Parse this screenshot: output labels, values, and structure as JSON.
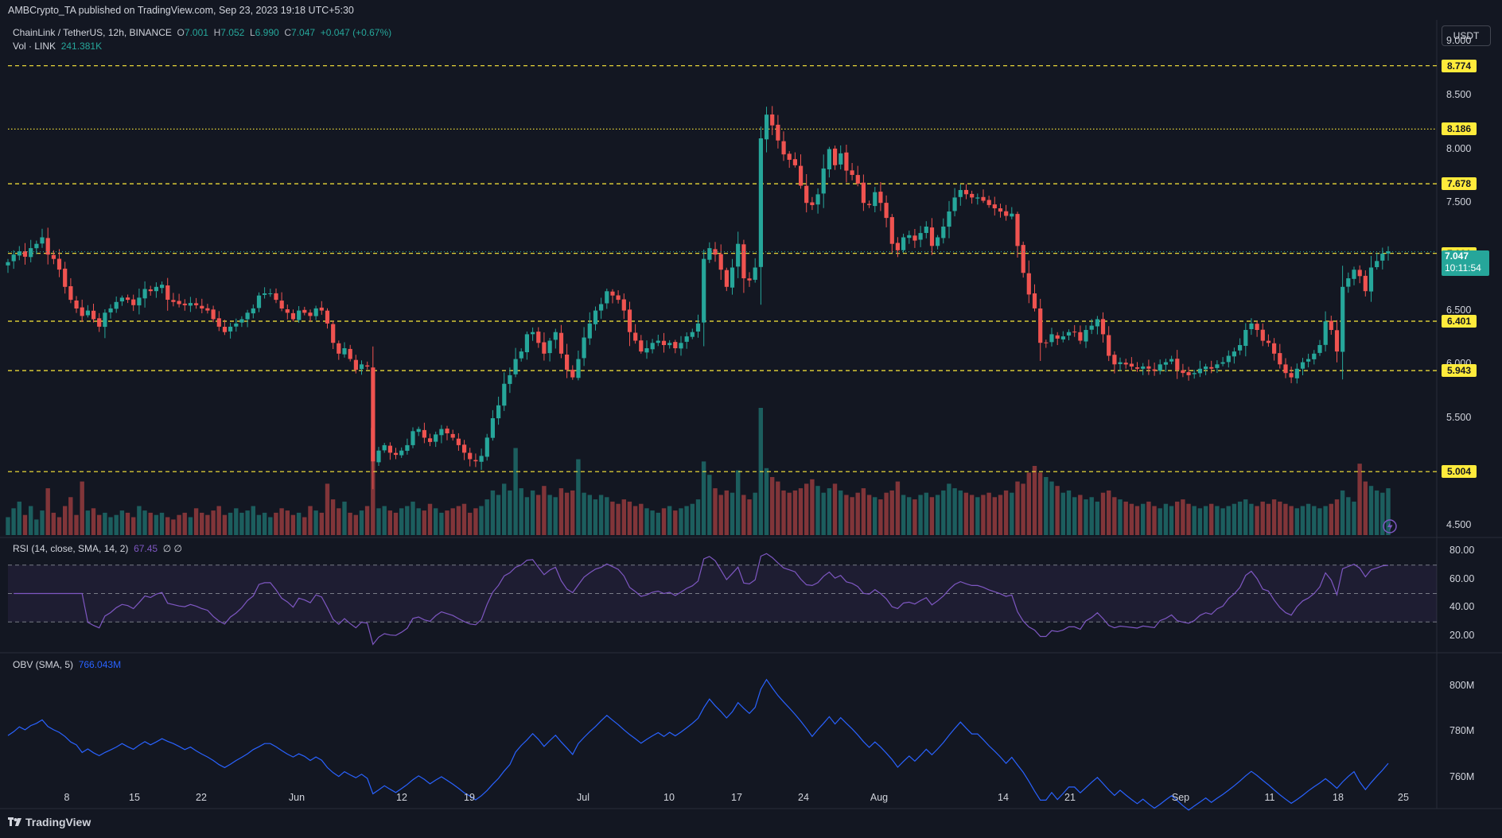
{
  "publisher_line": "AMBCrypto_TA published on TradingView.com, Sep 23, 2023 19:18 UTC+5:30",
  "symbol": {
    "name": "ChainLink / TetherUS, 12h, BINANCE",
    "o_label": "O",
    "o": "7.001",
    "h_label": "H",
    "h": "7.052",
    "l_label": "L",
    "l": "6.990",
    "c_label": "C",
    "c": "7.047",
    "change": "+0.047 (+0.67%)"
  },
  "volume_legend": {
    "label": "Vol · LINK",
    "value": "241.381K"
  },
  "currency_button": "USDT",
  "price_axis_ticks": [
    "9.000",
    "8.500",
    "8.000",
    "7.500",
    "6.500",
    "6.000",
    "5.500",
    "4.500"
  ],
  "levels": [
    "8.774",
    "8.186",
    "7.678",
    "7.031",
    "6.401",
    "5.943",
    "5.004"
  ],
  "current_price": {
    "price": "7.047",
    "countdown": "10:11:54"
  },
  "rsi": {
    "label": "RSI (14, close, SMA, 14, 2)",
    "value": "67.45",
    "extra": "∅ ∅",
    "ticks": [
      "80.00",
      "60.00",
      "40.00",
      "20.00"
    ]
  },
  "obv": {
    "label": "OBV (SMA, 5)",
    "value": "766.043M",
    "ticks": [
      "800M",
      "780M",
      "760M"
    ]
  },
  "time_axis": [
    "8",
    "15",
    "22",
    "Jun",
    "12",
    "19",
    "Jul",
    "10",
    "17",
    "24",
    "Aug",
    "14",
    "21",
    "Sep",
    "11",
    "18",
    "25"
  ],
  "footer": "TradingView",
  "colors": {
    "bg": "#131722",
    "up": "#26a69a",
    "down": "#ef5350",
    "level": "#ffeb3b",
    "rsi": "#7e57c2",
    "obv": "#2962ff"
  },
  "chart_data": {
    "type": "candlestick",
    "title": "ChainLink / TetherUS, 12h, BINANCE",
    "ylim": [
      4.4,
      9.2
    ],
    "closes": [
      6.95,
      7.02,
      7.05,
      7.0,
      7.08,
      7.12,
      7.18,
      7.02,
      6.98,
      6.88,
      6.72,
      6.6,
      6.52,
      6.45,
      6.5,
      6.42,
      6.35,
      6.48,
      6.52,
      6.58,
      6.62,
      6.6,
      6.55,
      6.62,
      6.7,
      6.68,
      6.72,
      6.74,
      6.6,
      6.58,
      6.56,
      6.55,
      6.57,
      6.55,
      6.52,
      6.5,
      6.42,
      6.35,
      6.3,
      6.35,
      6.38,
      6.42,
      6.48,
      6.52,
      6.64,
      6.66,
      6.66,
      6.6,
      6.52,
      6.48,
      6.42,
      6.5,
      6.48,
      6.45,
      6.52,
      6.5,
      6.38,
      6.2,
      6.1,
      6.15,
      6.05,
      5.95,
      6.0,
      5.98,
      5.1,
      5.2,
      5.25,
      5.18,
      5.16,
      5.2,
      5.25,
      5.38,
      5.4,
      5.32,
      5.28,
      5.35,
      5.4,
      5.36,
      5.32,
      5.25,
      5.18,
      5.12,
      5.1,
      5.15,
      5.32,
      5.5,
      5.62,
      5.82,
      5.9,
      6.05,
      6.12,
      6.28,
      6.3,
      6.2,
      6.1,
      6.22,
      6.3,
      6.1,
      5.95,
      5.88,
      6.05,
      6.25,
      6.38,
      6.5,
      6.56,
      6.68,
      6.64,
      6.6,
      6.5,
      6.3,
      6.22,
      6.12,
      6.15,
      6.2,
      6.22,
      6.18,
      6.2,
      6.15,
      6.2,
      6.26,
      6.3,
      6.38,
      6.98,
      7.08,
      7.02,
      6.88,
      6.72,
      6.9,
      7.12,
      6.8,
      6.78,
      6.9,
      8.1,
      8.32,
      8.22,
      8.08,
      7.95,
      7.9,
      7.85,
      7.66,
      7.5,
      7.48,
      7.58,
      7.82,
      8.0,
      7.85,
      7.96,
      7.8,
      7.76,
      7.68,
      7.5,
      7.48,
      7.6,
      7.5,
      7.36,
      7.12,
      7.06,
      7.18,
      7.2,
      7.15,
      7.22,
      7.28,
      7.1,
      7.18,
      7.28,
      7.42,
      7.55,
      7.62,
      7.58,
      7.55,
      7.55,
      7.52,
      7.48,
      7.45,
      7.42,
      7.38,
      7.4,
      7.1,
      6.85,
      6.65,
      6.52,
      6.2,
      6.2,
      6.28,
      6.24,
      6.26,
      6.3,
      6.3,
      6.22,
      6.32,
      6.36,
      6.42,
      6.28,
      6.08,
      6.0,
      6.02,
      6.0,
      5.98,
      5.96,
      5.98,
      5.96,
      5.94,
      6.0,
      6.02,
      6.05,
      5.95,
      5.92,
      5.9,
      5.92,
      5.96,
      5.98,
      5.96,
      6.0,
      6.02,
      6.08,
      6.12,
      6.18,
      6.32,
      6.38,
      6.32,
      6.22,
      6.2,
      6.1,
      6.0,
      5.92,
      5.88,
      5.96,
      6.02,
      6.05,
      6.1,
      6.18,
      6.4,
      6.32,
      6.12,
      6.72,
      6.8,
      6.88,
      6.82,
      6.68,
      6.9,
      6.96,
      7.03,
      7.05
    ],
    "volumes": [
      0.8,
      1.2,
      1.5,
      0.9,
      1.3,
      0.7,
      1.1,
      2.1,
      1.0,
      0.8,
      1.3,
      1.7,
      0.9,
      2.4,
      1.1,
      1.2,
      0.9,
      1.0,
      0.8,
      0.9,
      1.1,
      1.0,
      0.8,
      1.3,
      1.1,
      1.0,
      0.9,
      1.0,
      0.8,
      0.7,
      0.9,
      1.0,
      0.8,
      1.2,
      1.0,
      0.9,
      1.1,
      1.3,
      0.9,
      1.0,
      1.2,
      1.0,
      1.1,
      1.3,
      0.9,
      1.0,
      0.8,
      1.0,
      1.2,
      1.1,
      0.9,
      1.0,
      0.8,
      1.3,
      1.1,
      1.0,
      2.3,
      1.6,
      1.2,
      1.5,
      1.0,
      0.9,
      1.1,
      1.3,
      4.8,
      1.2,
      1.3,
      1.1,
      1.0,
      1.2,
      1.3,
      1.5,
      1.2,
      1.1,
      1.4,
      1.2,
      1.0,
      1.1,
      1.2,
      1.3,
      1.4,
      1.0,
      1.2,
      1.3,
      1.6,
      2.0,
      1.8,
      2.3,
      2.0,
      3.9,
      2.1,
      1.7,
      2.0,
      1.8,
      2.2,
      1.8,
      1.7,
      2.1,
      1.9,
      2.0,
      3.4,
      1.9,
      1.8,
      1.6,
      1.8,
      1.7,
      1.5,
      1.4,
      1.6,
      1.5,
      1.3,
      1.4,
      1.2,
      1.1,
      1.0,
      1.2,
      1.3,
      1.1,
      1.2,
      1.3,
      1.4,
      1.6,
      3.3,
      2.7,
      2.1,
      1.8,
      2.0,
      1.9,
      2.9,
      1.8,
      1.6,
      1.9,
      5.7,
      3.0,
      2.6,
      2.4,
      2.0,
      1.9,
      2.0,
      2.1,
      2.3,
      2.5,
      2.2,
      1.9,
      2.1,
      2.3,
      2.0,
      1.8,
      1.7,
      1.9,
      2.1,
      1.8,
      1.7,
      1.6,
      1.9,
      2.0,
      2.4,
      1.8,
      1.7,
      1.6,
      1.8,
      1.9,
      1.7,
      1.8,
      2.0,
      2.3,
      2.1,
      2.0,
      1.9,
      1.8,
      1.7,
      1.8,
      1.9,
      1.7,
      1.8,
      2.0,
      1.9,
      2.4,
      2.3,
      2.8,
      3.1,
      2.8,
      2.6,
      2.4,
      2.2,
      1.9,
      2.0,
      1.7,
      1.8,
      1.6,
      1.7,
      1.5,
      1.9,
      2.0,
      1.7,
      1.6,
      1.5,
      1.4,
      1.3,
      1.4,
      1.5,
      1.3,
      1.2,
      1.4,
      1.3,
      1.5,
      1.6,
      1.4,
      1.3,
      1.2,
      1.3,
      1.4,
      1.3,
      1.2,
      1.3,
      1.4,
      1.5,
      1.6,
      1.4,
      1.3,
      1.5,
      1.4,
      1.6,
      1.5,
      1.4,
      1.3,
      1.2,
      1.3,
      1.4,
      1.3,
      1.2,
      1.3,
      1.4,
      1.6,
      2.0,
      1.7,
      1.5,
      3.2,
      2.4,
      2.2,
      2.0,
      1.9,
      2.1,
      1.8,
      1.1,
      1.4
    ],
    "rsi_ylim": [
      10,
      85
    ],
    "obv_ylim": [
      748,
      812
    ]
  }
}
